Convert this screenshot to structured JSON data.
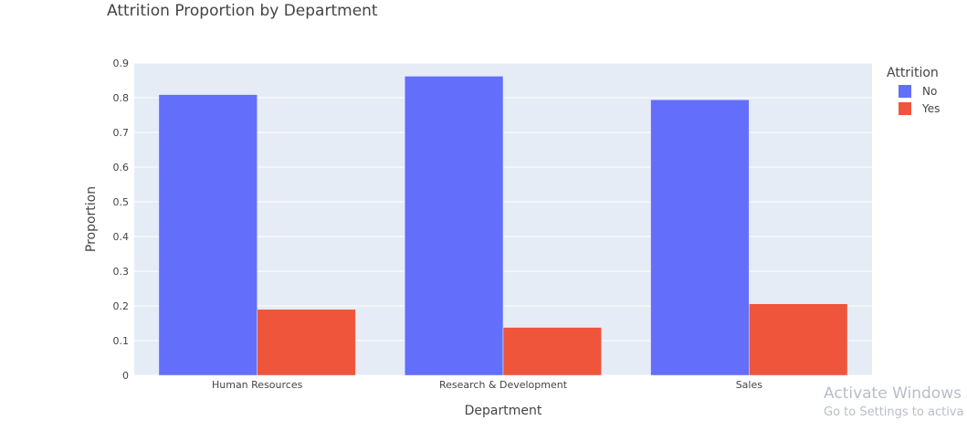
{
  "chart_data": {
    "type": "bar",
    "title": "Attrition Proportion by Department",
    "xlabel": "Department",
    "ylabel": "Proportion",
    "categories": [
      "Human Resources",
      "Research & Development",
      "Sales"
    ],
    "series": [
      {
        "name": "No",
        "color": "#636efa",
        "values": [
          0.809,
          0.862,
          0.794
        ]
      },
      {
        "name": "Yes",
        "color": "#ef553b",
        "values": [
          0.19,
          0.138,
          0.206
        ]
      }
    ],
    "ylim": [
      0,
      0.9
    ],
    "yticks": [
      "0",
      "0.1",
      "0.2",
      "0.3",
      "0.4",
      "0.5",
      "0.6",
      "0.7",
      "0.8",
      "0.9"
    ],
    "grid": true,
    "plot_background": "#e5ecf6",
    "legend": {
      "title": "Attrition",
      "placement": "right"
    }
  },
  "watermark": {
    "line1": "Activate Windows",
    "line2": "Go to Settings to activa"
  }
}
